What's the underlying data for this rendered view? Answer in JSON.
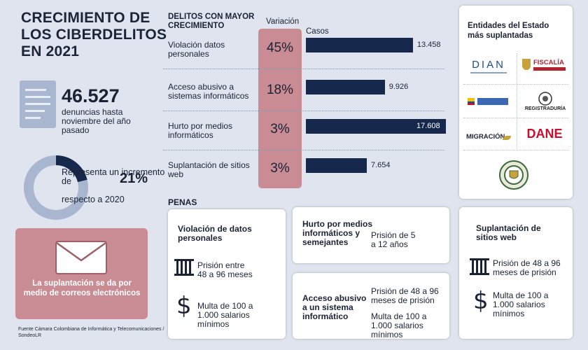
{
  "header": {
    "title": "CRECIMIENTO DE LOS CIBERDELITOS EN 2021"
  },
  "stats": {
    "complaints_value": "46.527",
    "complaints_label": "denuncias hasta noviembre del año pasado",
    "increase_text": "Representa un incremento de",
    "increase_suffix": "respecto a 2020",
    "increase_pct": "21%",
    "increase_fraction": 0.21
  },
  "mail": {
    "text": "La suplantación se da por medio de correos electrónicos"
  },
  "source": "Fuente Cámara Colombiana de Informática y Telecomunicaciones / SondeoLR",
  "chart_data": {
    "type": "bar",
    "title": "DELITOS CON MAYOR CRECIMIENTO",
    "variation_header": "Variación",
    "cases_header": "Casos",
    "categories": [
      "Violación datos personales",
      "Acceso abusivo a sistemas informáticos",
      "Hurto por medios informáticos",
      "Suplantación de sitios web"
    ],
    "variation": [
      "45%",
      "18%",
      "3%",
      "3%"
    ],
    "values": [
      13458,
      9926,
      17608,
      7654
    ],
    "value_labels": [
      "13.458",
      "9.926",
      "17.608",
      "7.654"
    ],
    "xlim": [
      0,
      17608
    ]
  },
  "entities": {
    "title": "Entidades del Estado más suplantadas",
    "logos": [
      "DIAN",
      "FISCALÍA",
      "REGISTRADURÍA",
      "MIGRACIÓN",
      "DANE"
    ]
  },
  "penalties": {
    "heading": "PENAS",
    "cards": [
      {
        "title": "Violación de datos personales",
        "prison": "Prisión entre 48 a 96 meses",
        "fine": "Multa de 100 a 1.000 salarios mínimos"
      },
      {
        "title": "Hurto por medios informáticos y semejantes",
        "prison": "Prisión de 5 a 12 años"
      },
      {
        "title": "Acceso abusivo a un sistema informático",
        "prison": "Prisión de 48 a 96 meses de prisión",
        "fine": "Multa de 100 a 1.000 salarios mínimos"
      },
      {
        "title": "Suplantación de sitios web",
        "prison": "Prisión de 48 a 96 meses de prisión",
        "fine": "Multa de 100 a 1.000 salarios mínimos"
      }
    ]
  },
  "colors": {
    "navy": "#16284b",
    "rose": "#c98c94",
    "background": "#dfe4ee",
    "donut_track": "#a9b6cf"
  }
}
